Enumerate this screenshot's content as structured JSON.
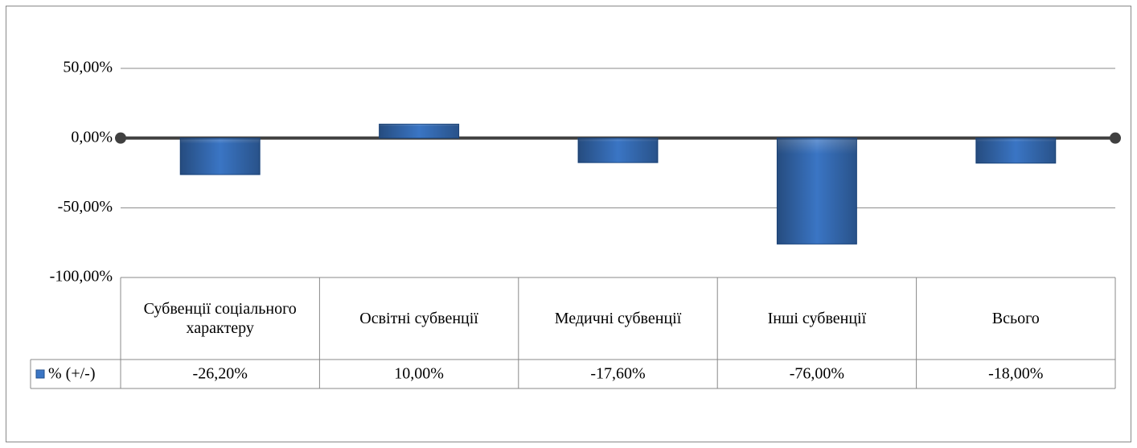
{
  "chart_data": {
    "type": "bar",
    "categories": [
      "Субвенції соціального характеру",
      "Освітні субвенції",
      "Медичні субвенції",
      "Інші субвенції",
      "Всього"
    ],
    "series": [
      {
        "name": "% (+/-)",
        "color": "#3a75c4",
        "values": [
          -26.2,
          10,
          -17.6,
          -76,
          -18
        ],
        "value_labels": [
          "-26,20%",
          "10,00%",
          "-17,60%",
          "-76,00%",
          "-18,00%"
        ]
      }
    ],
    "ylim": [
      -100,
      50
    ],
    "yticks": [
      {
        "value": -100,
        "label": "-100,00%"
      },
      {
        "value": -50,
        "label": "-50,00%"
      },
      {
        "value": 0,
        "label": "0,00%"
      },
      {
        "value": 50,
        "label": "50,00%"
      }
    ],
    "grid": true
  }
}
